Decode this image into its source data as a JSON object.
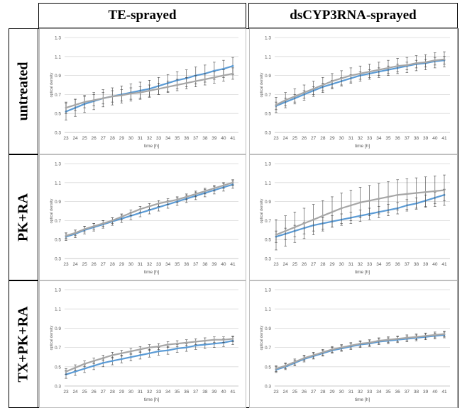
{
  "columns": [
    "TE-sprayed",
    "dsCYP3RNA-sprayed"
  ],
  "rows": [
    "untreated",
    "PK+RA",
    "TX+PK+RA"
  ],
  "colors": {
    "blue_series": "#5b9bd5",
    "gray_series": "#a6a6a6",
    "error_bars": "#404040",
    "grid": "#d9d9d9"
  },
  "chart_data": [
    {
      "type": "line",
      "row": "untreated",
      "column": "TE-sprayed",
      "xlabel": "time [h]",
      "ylabel": "optical density",
      "ylim": [
        0.3,
        1.3
      ],
      "yticks": [
        "0.3",
        "0.5",
        "0.7",
        "0.9",
        "1.1",
        "1.3"
      ],
      "categories": [
        "23",
        "24",
        "25",
        "26",
        "27",
        "28",
        "29",
        "30",
        "31",
        "32",
        "33",
        "34",
        "35",
        "36",
        "37",
        "38",
        "39",
        "40",
        "41"
      ],
      "grid": true,
      "series": [
        {
          "color": "blue",
          "values": [
            0.52,
            0.56,
            0.6,
            0.63,
            0.66,
            0.68,
            0.7,
            0.72,
            0.74,
            0.76,
            0.79,
            0.82,
            0.85,
            0.87,
            0.9,
            0.92,
            0.95,
            0.97,
            1.0
          ],
          "error": 0.09
        },
        {
          "color": "gray",
          "values": [
            0.56,
            0.59,
            0.62,
            0.64,
            0.66,
            0.68,
            0.69,
            0.71,
            0.72,
            0.74,
            0.76,
            0.78,
            0.8,
            0.82,
            0.84,
            0.86,
            0.88,
            0.9,
            0.92
          ],
          "error": 0.06
        }
      ]
    },
    {
      "type": "line",
      "row": "untreated",
      "column": "dsCYP3RNA-sprayed",
      "xlabel": "time [h]",
      "ylabel": "optical density",
      "ylim": [
        0.3,
        1.3
      ],
      "yticks": [
        "0.3",
        "0.5",
        "0.7",
        "0.9",
        "1.1",
        "1.3"
      ],
      "categories": [
        "23",
        "24",
        "25",
        "26",
        "27",
        "28",
        "29",
        "30",
        "31",
        "32",
        "33",
        "34",
        "35",
        "36",
        "37",
        "38",
        "39",
        "40",
        "41"
      ],
      "grid": true,
      "series": [
        {
          "color": "blue",
          "values": [
            0.58,
            0.62,
            0.66,
            0.7,
            0.74,
            0.78,
            0.81,
            0.84,
            0.87,
            0.9,
            0.92,
            0.94,
            0.96,
            0.98,
            1.0,
            1.02,
            1.03,
            1.05,
            1.06
          ],
          "error": 0.04
        },
        {
          "color": "gray",
          "values": [
            0.59,
            0.64,
            0.68,
            0.72,
            0.76,
            0.8,
            0.84,
            0.87,
            0.9,
            0.92,
            0.94,
            0.96,
            0.98,
            1.0,
            1.01,
            1.03,
            1.04,
            1.06,
            1.07
          ],
          "error": 0.08
        }
      ]
    },
    {
      "type": "line",
      "row": "PK+RA",
      "column": "TE-sprayed",
      "xlabel": "time [h]",
      "ylabel": "optical density",
      "ylim": [
        0.3,
        1.3
      ],
      "yticks": [
        "0.3",
        "0.5",
        "0.7",
        "0.9",
        "1.1",
        "1.3"
      ],
      "categories": [
        "23",
        "24",
        "25",
        "26",
        "27",
        "28",
        "29",
        "30",
        "31",
        "32",
        "33",
        "34",
        "35",
        "36",
        "37",
        "38",
        "39",
        "40",
        "41"
      ],
      "grid": true,
      "series": [
        {
          "color": "blue",
          "values": [
            0.53,
            0.56,
            0.6,
            0.63,
            0.66,
            0.69,
            0.72,
            0.75,
            0.78,
            0.81,
            0.84,
            0.87,
            0.9,
            0.93,
            0.96,
            0.99,
            1.02,
            1.05,
            1.08
          ],
          "error": 0.04
        },
        {
          "color": "gray",
          "values": [
            0.54,
            0.57,
            0.61,
            0.64,
            0.67,
            0.7,
            0.74,
            0.78,
            0.82,
            0.85,
            0.88,
            0.9,
            0.92,
            0.95,
            0.98,
            1.01,
            1.04,
            1.07,
            1.1
          ],
          "error": 0.03
        }
      ]
    },
    {
      "type": "line",
      "row": "PK+RA",
      "column": "dsCYP3RNA-sprayed",
      "xlabel": "time [h]",
      "ylabel": "optical density",
      "ylim": [
        0.3,
        1.3
      ],
      "yticks": [
        "0.3",
        "0.5",
        "0.7",
        "0.9",
        "1.1",
        "1.3"
      ],
      "categories": [
        "23",
        "24",
        "25",
        "26",
        "27",
        "28",
        "29",
        "30",
        "31",
        "32",
        "33",
        "34",
        "35",
        "36",
        "37",
        "38",
        "39",
        "40",
        "41"
      ],
      "grid": true,
      "series": [
        {
          "color": "blue",
          "values": [
            0.53,
            0.56,
            0.59,
            0.62,
            0.65,
            0.67,
            0.69,
            0.71,
            0.73,
            0.75,
            0.77,
            0.79,
            0.81,
            0.83,
            0.86,
            0.88,
            0.91,
            0.94,
            0.97
          ],
          "error": 0.06
        },
        {
          "color": "gray",
          "values": [
            0.55,
            0.59,
            0.63,
            0.67,
            0.71,
            0.75,
            0.79,
            0.83,
            0.86,
            0.89,
            0.91,
            0.93,
            0.95,
            0.97,
            0.98,
            0.99,
            1.0,
            1.01,
            1.02
          ],
          "error": 0.16
        }
      ]
    },
    {
      "type": "line",
      "row": "TX+PK+RA",
      "column": "TE-sprayed",
      "xlabel": "time [h]",
      "ylabel": "optical density",
      "ylim": [
        0.3,
        1.3
      ],
      "yticks": [
        "0.3",
        "0.5",
        "0.7",
        "0.9",
        "1.1",
        "1.3"
      ],
      "categories": [
        "23",
        "24",
        "25",
        "26",
        "27",
        "28",
        "29",
        "30",
        "31",
        "32",
        "33",
        "34",
        "35",
        "36",
        "37",
        "38",
        "39",
        "40",
        "41"
      ],
      "grid": true,
      "series": [
        {
          "color": "blue",
          "values": [
            0.42,
            0.45,
            0.48,
            0.51,
            0.54,
            0.56,
            0.58,
            0.6,
            0.62,
            0.64,
            0.66,
            0.67,
            0.69,
            0.7,
            0.72,
            0.73,
            0.74,
            0.75,
            0.77
          ],
          "error": 0.04
        },
        {
          "color": "gray",
          "values": [
            0.45,
            0.49,
            0.53,
            0.56,
            0.59,
            0.62,
            0.64,
            0.66,
            0.68,
            0.7,
            0.71,
            0.73,
            0.74,
            0.75,
            0.76,
            0.77,
            0.78,
            0.78,
            0.79
          ],
          "error": 0.03
        }
      ]
    },
    {
      "type": "line",
      "row": "TX+PK+RA",
      "column": "dsCYP3RNA-sprayed",
      "xlabel": "time [h]",
      "ylabel": "optical density",
      "ylim": [
        0.3,
        1.3
      ],
      "yticks": [
        "0.3",
        "0.5",
        "0.7",
        "0.9",
        "1.1",
        "1.3"
      ],
      "categories": [
        "23",
        "24",
        "25",
        "26",
        "27",
        "28",
        "29",
        "30",
        "31",
        "32",
        "33",
        "34",
        "35",
        "36",
        "37",
        "38",
        "39",
        "40",
        "41"
      ],
      "grid": true,
      "series": [
        {
          "color": "blue",
          "values": [
            0.47,
            0.5,
            0.54,
            0.58,
            0.61,
            0.64,
            0.67,
            0.69,
            0.71,
            0.73,
            0.74,
            0.76,
            0.77,
            0.78,
            0.79,
            0.8,
            0.81,
            0.82,
            0.83
          ],
          "error": 0.03
        },
        {
          "color": "gray",
          "values": [
            0.48,
            0.51,
            0.55,
            0.59,
            0.62,
            0.65,
            0.68,
            0.7,
            0.72,
            0.74,
            0.75,
            0.77,
            0.78,
            0.79,
            0.8,
            0.81,
            0.82,
            0.83,
            0.84
          ],
          "error": 0.03
        }
      ]
    }
  ]
}
